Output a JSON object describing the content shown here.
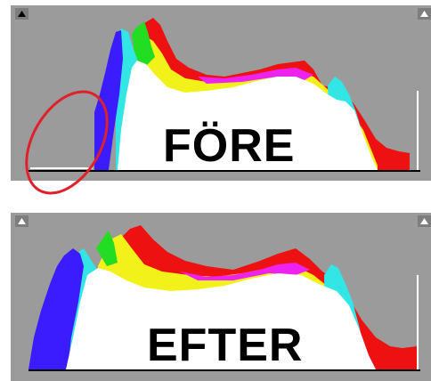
{
  "panels": {
    "before": {
      "label": "FÖRE",
      "clipping_warnings": {
        "shadows": "triangle-up-icon",
        "highlights": "triangle-up-icon"
      },
      "annotation": {
        "shape": "red-ellipse",
        "color": "#e0202a"
      }
    },
    "after": {
      "label": "EFTER",
      "clipping_warnings": {
        "shadows": "triangle-up-icon",
        "highlights": "triangle-up-icon"
      }
    }
  },
  "colors": {
    "panel_background": "#9b9b9b",
    "luminance": "#ffffff",
    "blue": "#3b1bff",
    "cyan": "#33e6e6",
    "green": "#22dd22",
    "yellow": "#f2f21a",
    "red": "#ee1111",
    "magenta": "#ee22ee",
    "annotation": "#e0202a"
  }
}
